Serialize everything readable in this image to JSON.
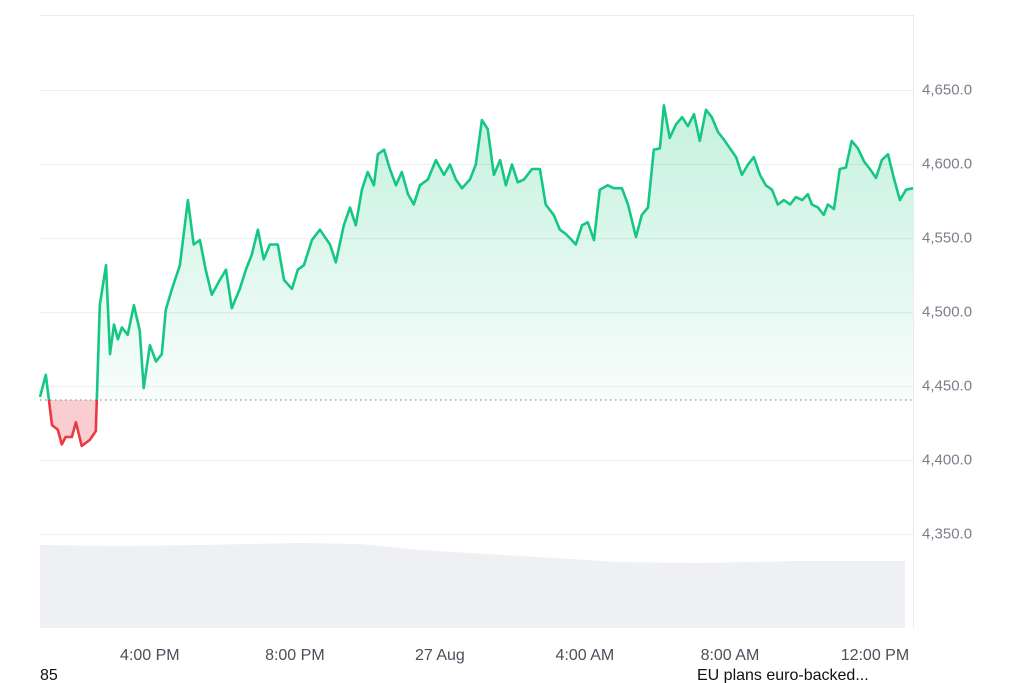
{
  "chart_data": {
    "type": "line",
    "x": [
      -11.03,
      -10.87,
      -10.7,
      -10.54,
      -10.43,
      -10.32,
      -10.15,
      -10.04,
      -9.88,
      -9.66,
      -9.49,
      -9.38,
      -9.21,
      -9.1,
      -8.99,
      -8.88,
      -8.77,
      -8.61,
      -8.44,
      -8.28,
      -8.17,
      -8.0,
      -7.83,
      -7.67,
      -7.56,
      -7.39,
      -7.17,
      -6.95,
      -6.79,
      -6.62,
      -6.46,
      -6.29,
      -6.07,
      -5.9,
      -5.74,
      -5.52,
      -5.35,
      -5.19,
      -5.02,
      -4.86,
      -4.69,
      -4.47,
      -4.3,
      -4.08,
      -3.92,
      -3.75,
      -3.53,
      -3.31,
      -3.03,
      -2.87,
      -2.65,
      -2.48,
      -2.32,
      -2.15,
      -1.99,
      -1.82,
      -1.71,
      -1.54,
      -1.38,
      -1.21,
      -1.05,
      -0.88,
      -0.72,
      -0.55,
      -0.33,
      -0.11,
      0.11,
      0.28,
      0.44,
      0.61,
      0.83,
      0.99,
      1.16,
      1.32,
      1.49,
      1.66,
      1.82,
      1.99,
      2.15,
      2.32,
      2.54,
      2.76,
      2.92,
      3.14,
      3.31,
      3.48,
      3.64,
      3.75,
      3.92,
      4.08,
      4.25,
      4.41,
      4.63,
      4.8,
      5.02,
      5.19,
      5.41,
      5.57,
      5.74,
      5.9,
      6.07,
      6.18,
      6.34,
      6.51,
      6.68,
      6.84,
      7.01,
      7.17,
      7.34,
      7.5,
      7.67,
      7.83,
      8.0,
      8.17,
      8.33,
      8.5,
      8.66,
      8.83,
      8.99,
      9.16,
      9.32,
      9.49,
      9.66,
      9.82,
      9.99,
      10.15,
      10.26,
      10.43,
      10.59,
      10.7,
      10.87,
      11.03,
      11.2,
      11.36,
      11.53,
      11.7,
      11.86,
      12.03,
      12.19,
      12.36,
      12.52,
      12.69,
      12.86,
      13.05
    ],
    "values": [
      4443,
      4458,
      4424,
      4421,
      4411,
      4416,
      4416,
      4426,
      4410,
      4414,
      4420,
      4505,
      4532,
      4472,
      4492,
      4482,
      4490,
      4485,
      4505,
      4488,
      4449,
      4478,
      4467,
      4472,
      4502,
      4516,
      4532,
      4576,
      4546,
      4549,
      4529,
      4512,
      4522,
      4529,
      4503,
      4516,
      4529,
      4539,
      4556,
      4536,
      4546,
      4546,
      4522,
      4516,
      4529,
      4532,
      4549,
      4556,
      4546,
      4534,
      4559,
      4571,
      4559,
      4583,
      4595,
      4586,
      4607,
      4610,
      4597,
      4586,
      4595,
      4580,
      4573,
      4586,
      4590,
      4603,
      4593,
      4600,
      4590,
      4584,
      4590,
      4600,
      4630,
      4624,
      4593,
      4603,
      4586,
      4600,
      4588,
      4590,
      4597,
      4597,
      4573,
      4566,
      4556,
      4553,
      4549,
      4546,
      4559,
      4561,
      4549,
      4583,
      4586,
      4584,
      4584,
      4573,
      4551,
      4566,
      4571,
      4610,
      4611,
      4640,
      4618,
      4627,
      4632,
      4626,
      4634,
      4616,
      4637,
      4632,
      4622,
      4617,
      4611,
      4605,
      4593,
      4600,
      4605,
      4593,
      4586,
      4583,
      4573,
      4576,
      4573,
      4578,
      4576,
      4580,
      4573,
      4571,
      4566,
      4573,
      4570,
      4597,
      4598,
      4616,
      4611,
      4602,
      4597,
      4591,
      4603,
      4607,
      4591,
      4576,
      4583,
      4584
    ],
    "reference": 4441,
    "color_up": "#16c784",
    "color_down": "#ea3943",
    "xlim": [
      -11.03,
      13.05
    ],
    "xticks": [
      {
        "value": -8,
        "label": "4:00 PM"
      },
      {
        "value": -4,
        "label": "8:00 PM"
      },
      {
        "value": 0,
        "label": "27 Aug"
      },
      {
        "value": 4,
        "label": "4:00 AM"
      },
      {
        "value": 8,
        "label": "8:00 AM"
      },
      {
        "value": 12,
        "label": "12:00 PM"
      }
    ],
    "ylim": [
      4287,
      4701
    ],
    "yticks": [
      {
        "value": 4350,
        "label": "4,350.0"
      },
      {
        "value": 4400,
        "label": "4,400.0"
      },
      {
        "value": 4450,
        "label": "4,450.0"
      },
      {
        "value": 4500,
        "label": "4,500.0"
      },
      {
        "value": 4550,
        "label": "4,550.0"
      },
      {
        "value": 4600,
        "label": "4,600.0"
      },
      {
        "value": 4650,
        "label": "4,650.0"
      }
    ],
    "grid": true,
    "annotations": [
      "85",
      "EU plans euro-backed..."
    ]
  }
}
